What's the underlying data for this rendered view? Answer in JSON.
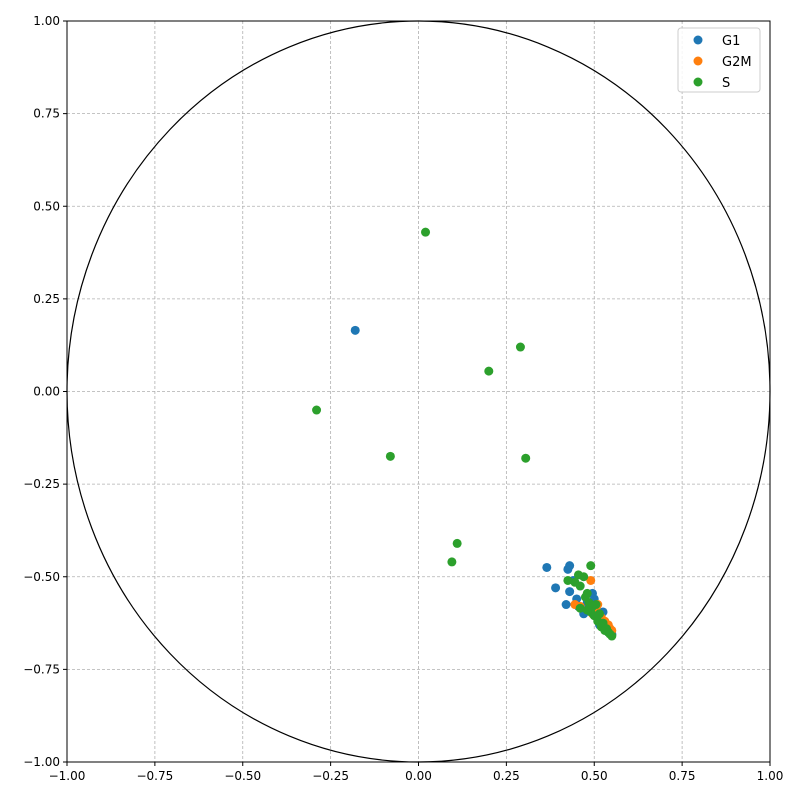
{
  "chart_data": {
    "type": "scatter",
    "title": "",
    "xlabel": "",
    "ylabel": "",
    "xlim": [
      -1.0,
      1.0
    ],
    "ylim": [
      -1.0,
      1.0
    ],
    "grid": true,
    "grid_style": "dashed",
    "unit_circle": true,
    "legend_position": "top-right",
    "x_ticks": [
      -1.0,
      -0.75,
      -0.5,
      -0.25,
      0.0,
      0.25,
      0.5,
      0.75,
      1.0
    ],
    "y_ticks": [
      -1.0,
      -0.75,
      -0.5,
      -0.25,
      0.0,
      0.25,
      0.5,
      0.75,
      1.0
    ],
    "x_tick_labels": [
      "−1.00",
      "−0.75",
      "−0.50",
      "−0.25",
      "0.00",
      "0.25",
      "0.50",
      "0.75",
      "1.00"
    ],
    "y_tick_labels": [
      "−1.00",
      "−0.75",
      "−0.50",
      "−0.25",
      "0.00",
      "0.25",
      "0.50",
      "0.75",
      "1.00"
    ],
    "series": [
      {
        "name": "G1",
        "color": "#1f77b4",
        "points": [
          [
            -0.18,
            0.165
          ],
          [
            0.365,
            -0.475
          ],
          [
            0.39,
            -0.53
          ],
          [
            0.42,
            -0.575
          ],
          [
            0.425,
            -0.48
          ],
          [
            0.43,
            -0.47
          ],
          [
            0.43,
            -0.54
          ],
          [
            0.44,
            -0.51
          ],
          [
            0.45,
            -0.56
          ],
          [
            0.455,
            -0.58
          ],
          [
            0.47,
            -0.6
          ],
          [
            0.48,
            -0.57
          ],
          [
            0.49,
            -0.59
          ],
          [
            0.495,
            -0.545
          ],
          [
            0.5,
            -0.56
          ],
          [
            0.505,
            -0.6
          ],
          [
            0.51,
            -0.615
          ],
          [
            0.515,
            -0.63
          ],
          [
            0.525,
            -0.595
          ],
          [
            0.53,
            -0.64
          ],
          [
            0.54,
            -0.65
          ],
          [
            0.55,
            -0.655
          ]
        ]
      },
      {
        "name": "G2M",
        "color": "#ff7f0e",
        "points": [
          [
            0.445,
            -0.575
          ],
          [
            0.46,
            -0.58
          ],
          [
            0.49,
            -0.51
          ],
          [
            0.495,
            -0.6
          ],
          [
            0.505,
            -0.585
          ],
          [
            0.51,
            -0.575
          ],
          [
            0.52,
            -0.61
          ],
          [
            0.53,
            -0.62
          ],
          [
            0.54,
            -0.63
          ],
          [
            0.545,
            -0.64
          ],
          [
            0.55,
            -0.645
          ]
        ]
      },
      {
        "name": "S",
        "color": "#2ca02c",
        "points": [
          [
            0.02,
            0.43
          ],
          [
            0.29,
            0.12
          ],
          [
            0.2,
            0.055
          ],
          [
            -0.29,
            -0.05
          ],
          [
            -0.08,
            -0.175
          ],
          [
            0.305,
            -0.18
          ],
          [
            0.11,
            -0.41
          ],
          [
            0.095,
            -0.46
          ],
          [
            0.425,
            -0.51
          ],
          [
            0.445,
            -0.515
          ],
          [
            0.455,
            -0.495
          ],
          [
            0.46,
            -0.525
          ],
          [
            0.47,
            -0.5
          ],
          [
            0.475,
            -0.555
          ],
          [
            0.48,
            -0.545
          ],
          [
            0.485,
            -0.57
          ],
          [
            0.49,
            -0.47
          ],
          [
            0.49,
            -0.595
          ],
          [
            0.495,
            -0.58
          ],
          [
            0.5,
            -0.605
          ],
          [
            0.505,
            -0.575
          ],
          [
            0.51,
            -0.62
          ],
          [
            0.515,
            -0.6
          ],
          [
            0.52,
            -0.635
          ],
          [
            0.525,
            -0.625
          ],
          [
            0.53,
            -0.645
          ],
          [
            0.535,
            -0.64
          ],
          [
            0.54,
            -0.65
          ],
          [
            0.545,
            -0.655
          ],
          [
            0.55,
            -0.66
          ],
          [
            0.46,
            -0.585
          ],
          [
            0.48,
            -0.59
          ]
        ]
      }
    ]
  }
}
